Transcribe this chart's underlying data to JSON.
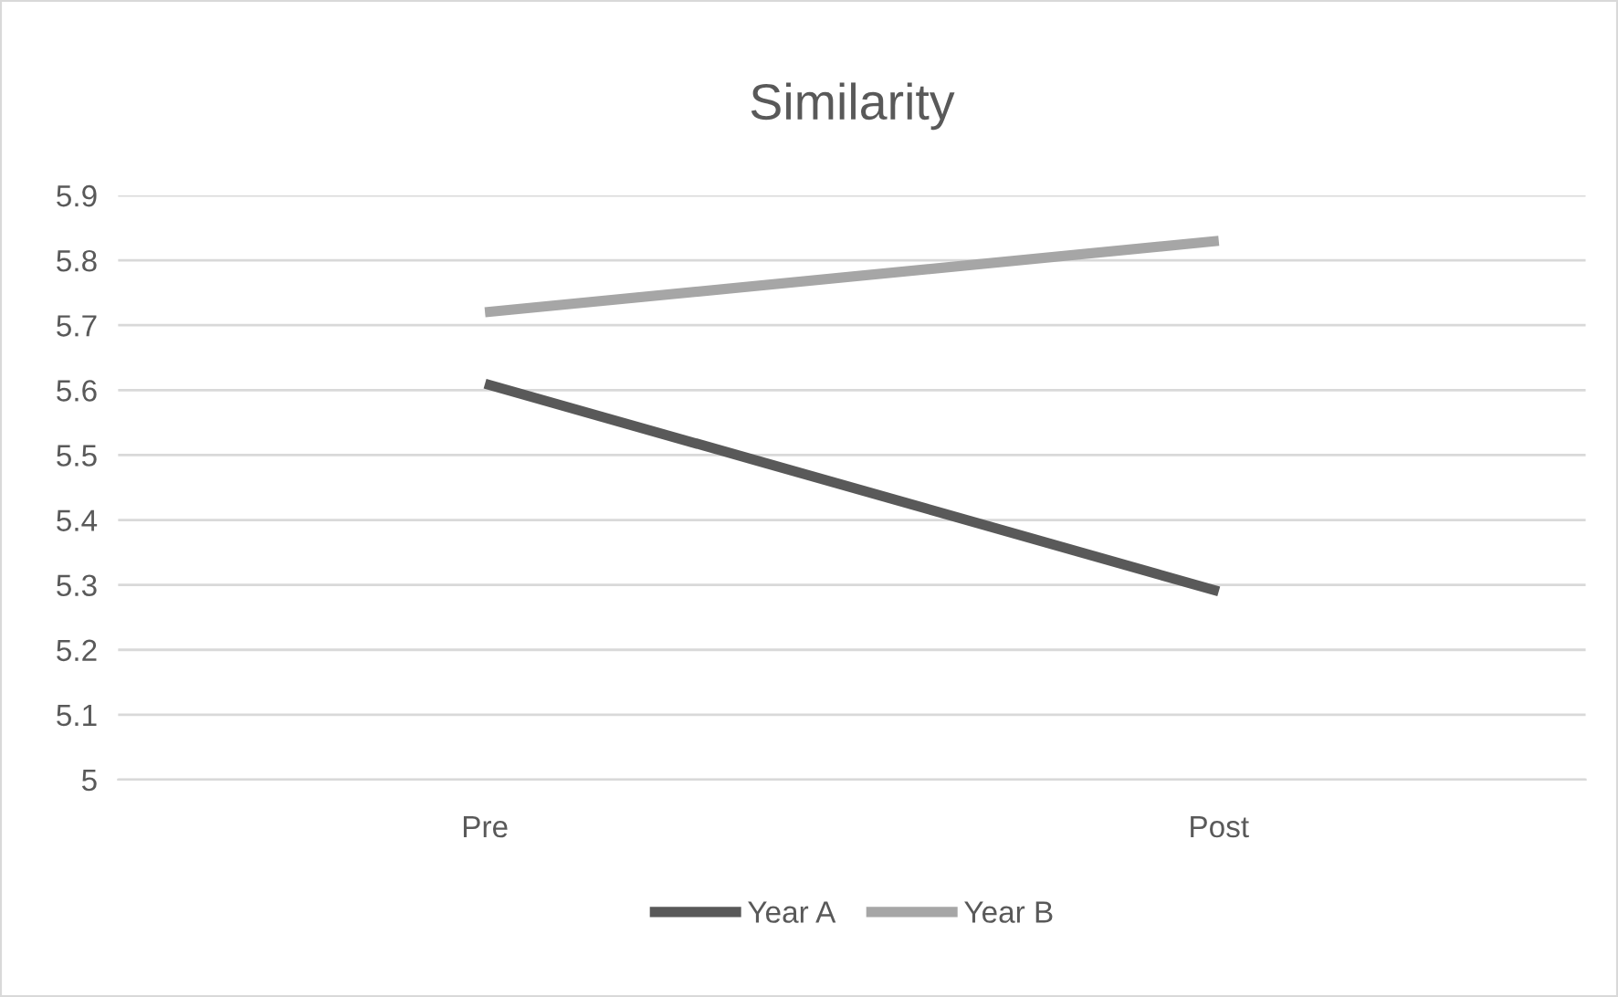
{
  "chart_data": {
    "type": "line",
    "title": "Similarity",
    "categories": [
      "Pre",
      "Post"
    ],
    "series": [
      {
        "name": "Year A",
        "color": "#595959",
        "values": [
          5.61,
          5.29
        ]
      },
      {
        "name": "Year B",
        "color": "#a6a6a6",
        "values": [
          5.72,
          5.83
        ]
      }
    ],
    "ylim": [
      5,
      5.9
    ],
    "yticks": [
      5,
      5.1,
      5.2,
      5.3,
      5.4,
      5.5,
      5.6,
      5.7,
      5.8,
      5.9
    ],
    "grid": "y",
    "legend": "bottom",
    "marker": "none",
    "line_style": "solid"
  }
}
